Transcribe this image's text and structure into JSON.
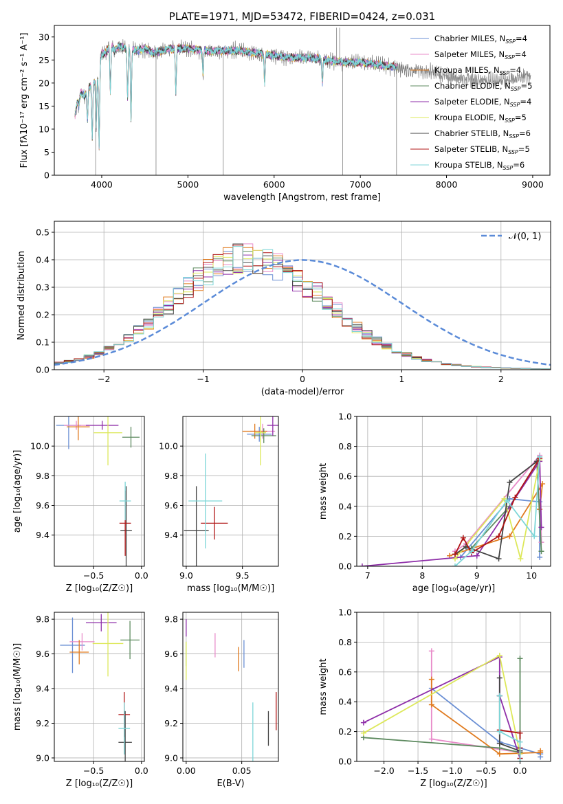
{
  "colors": {
    "Chabrier MILES": "#6a8fd4",
    "Salpeter MILES": "#e88bc9",
    "Kroupa MILES": "#e07b1f",
    "Chabrier ELODIE": "#5d8a5f",
    "Salpeter ELODIE": "#8e2ea8",
    "Kroupa ELODIE": "#dde85a",
    "Chabrier STELIB": "#444444",
    "Salpeter STELIB": "#b01515",
    "Kroupa STELIB": "#7dd6d8"
  },
  "chart_data": [
    {
      "id": "spectrum",
      "type": "line",
      "title": "PLATE=1971, MJD=53472, FIBERID=0424, z=0.031",
      "xlabel": "wavelength [Angstrom, rest frame]",
      "ylabel": "Flux [fλ10⁻¹⁷ erg cm⁻² s⁻¹ A⁻¹]",
      "xlim": [
        3450,
        9200
      ],
      "ylim": [
        0,
        32.5
      ],
      "xticks": [
        4000,
        5000,
        6000,
        7000,
        8000,
        9000
      ],
      "yticks": [
        0,
        5,
        10,
        15,
        20,
        25,
        30
      ],
      "legend_position": "top-right",
      "legend": [
        {
          "name": "Chabrier MILES",
          "nssp": "4"
        },
        {
          "name": "Salpeter MILES",
          "nssp": "4"
        },
        {
          "name": "Kroupa MILES",
          "nssp": "4"
        },
        {
          "name": "Chabrier ELODIE",
          "nssp": "5"
        },
        {
          "name": "Salpeter ELODIE",
          "nssp": "4"
        },
        {
          "name": "Kroupa ELODIE",
          "nssp": "5"
        },
        {
          "name": "Chabrier STELIB",
          "nssp": "6"
        },
        {
          "name": "Salpeter STELIB",
          "nssp": "5"
        },
        {
          "name": "Kroupa STELIB",
          "nssp": "6"
        }
      ],
      "data_profile": {
        "x": [
          3690,
          3720,
          3760,
          3800,
          3850,
          3900,
          3950,
          4000,
          4050,
          4100,
          4150,
          4200,
          4300,
          4400,
          4500,
          4600,
          4800,
          5000,
          5200,
          5400,
          5600,
          5800,
          6000,
          6200,
          6400,
          6600,
          6800,
          7000,
          7200,
          7400,
          7500,
          7800,
          8000,
          8200,
          8500,
          8800,
          8900
        ],
        "y": [
          13,
          16,
          18,
          17,
          19,
          20,
          21,
          26.5,
          26.5,
          28.5,
          27,
          28,
          27.5,
          27,
          27.5,
          26.5,
          27.5,
          27.5,
          27,
          27,
          27,
          26.5,
          26,
          25.5,
          25.5,
          25,
          24.5,
          24.5,
          24,
          23.5,
          23,
          22.5,
          21.5,
          21,
          20.5,
          21,
          21.5
        ]
      },
      "model_xrange": [
        3690,
        7430
      ],
      "data_xrange": [
        3690,
        8980
      ],
      "absorption_dips": [
        {
          "x": 3735,
          "y": 15
        },
        {
          "x": 3835,
          "y": 12
        },
        {
          "x": 3890,
          "y": 8
        },
        {
          "x": 3935,
          "y": 10
        },
        {
          "x": 3970,
          "y": 6
        },
        {
          "x": 4100,
          "y": 18
        },
        {
          "x": 4300,
          "y": 17
        },
        {
          "x": 4340,
          "y": 12
        },
        {
          "x": 4860,
          "y": 18
        },
        {
          "x": 5175,
          "y": 22
        },
        {
          "x": 5890,
          "y": 20
        },
        {
          "x": 6560,
          "y": 20
        }
      ],
      "spikes": [
        {
          "x": 3930,
          "y": 0
        },
        {
          "x": 4630,
          "y": 0
        },
        {
          "x": 5410,
          "y": 0
        },
        {
          "x": 6795,
          "y": 0
        },
        {
          "x": 6725,
          "y": 32
        },
        {
          "x": 6760,
          "y": 32
        },
        {
          "x": 7420,
          "y": 0
        }
      ]
    },
    {
      "id": "residuals",
      "type": "histogram",
      "xlabel": "(data-model)/error",
      "ylabel": "Normed distribution",
      "xlim": [
        -2.5,
        2.5
      ],
      "ylim": [
        0,
        0.54
      ],
      "xticks": [
        -2,
        -1,
        0,
        1,
        2
      ],
      "yticks": [
        0.0,
        0.1,
        0.2,
        0.3,
        0.4,
        0.5
      ],
      "grid": true,
      "bin_width": 0.1,
      "bin_start": -2.5,
      "legend_position": "top-right",
      "legend": [
        {
          "name": "𝒩(0, 1)",
          "style": "dashed",
          "color": "#5b8bd8"
        }
      ],
      "series_envelope": [
        0.024,
        0.026,
        0.03,
        0.033,
        0.037,
        0.042,
        0.048,
        0.054,
        0.061,
        0.068,
        0.077,
        0.086,
        0.096,
        0.107,
        0.118,
        0.13,
        0.143,
        0.157,
        0.171,
        0.186,
        0.201,
        0.217,
        0.233,
        0.248,
        0.264,
        0.28,
        0.296,
        0.311,
        0.326,
        0.34,
        0.353,
        0.365,
        0.376,
        0.385,
        0.393,
        0.399,
        0.403,
        0.406,
        0.407,
        0.405,
        0.402,
        0.397,
        0.391,
        0.383,
        0.374,
        0.363,
        0.351,
        0.338,
        0.324,
        0.309,
        0.294,
        0.278,
        0.262,
        0.246,
        0.23,
        0.214,
        0.198,
        0.183,
        0.169,
        0.155,
        0.141,
        0.128,
        0.116,
        0.105,
        0.095,
        0.085,
        0.076,
        0.068,
        0.061,
        0.055,
        0.049,
        0.043,
        0.038,
        0.034,
        0.03,
        0.027,
        0.024,
        0.021,
        0.019,
        0.017,
        0.015,
        0.013,
        0.012,
        0.011,
        0.01,
        0.009,
        0.008,
        0.007,
        0.006,
        0.006,
        0.005,
        0.005,
        0.004,
        0.004,
        0.003,
        0.003,
        0.003,
        0.003,
        0.002,
        0.002
      ]
    },
    {
      "id": "age_vs_Z",
      "type": "scatter",
      "xlabel": "Z [log₁₀(Z/Z☉)]",
      "ylabel": "age  [log₁₀(age/yr)]",
      "xlim": [
        -0.91,
        0.03
      ],
      "ylim": [
        9.19,
        10.2
      ],
      "xticks": [
        -0.5,
        0.0
      ],
      "yticks": [
        9.4,
        9.6,
        9.8,
        10.0
      ],
      "points": [
        {
          "model": "Chabrier MILES",
          "x": -0.76,
          "y": 10.14,
          "xerr": 0.13,
          "yerr": 0.16
        },
        {
          "model": "Salpeter MILES",
          "x": -0.68,
          "y": 10.14,
          "xerr": 0.13,
          "yerr": 0.03
        },
        {
          "model": "Kroupa MILES",
          "x": -0.66,
          "y": 10.13,
          "xerr": 0.12,
          "yerr": 0.09
        },
        {
          "model": "Chabrier ELODIE",
          "x": -0.11,
          "y": 10.06,
          "xerr": 0.09,
          "yerr": 0.07
        },
        {
          "model": "Salpeter ELODIE",
          "x": -0.41,
          "y": 10.14,
          "xerr": 0.17,
          "yerr": 0.03
        },
        {
          "model": "Kroupa ELODIE",
          "x": -0.35,
          "y": 10.09,
          "xerr": 0.15,
          "yerr": 0.22
        },
        {
          "model": "Chabrier STELIB",
          "x": -0.16,
          "y": 9.43,
          "xerr": 0.06,
          "yerr": 0.3
        },
        {
          "model": "Salpeter STELIB",
          "x": -0.17,
          "y": 9.48,
          "xerr": 0.06,
          "yerr": 0.22
        },
        {
          "model": "Kroupa STELIB",
          "x": -0.17,
          "y": 9.63,
          "xerr": 0.06,
          "yerr": 0.13
        }
      ]
    },
    {
      "id": "age_vs_mass",
      "type": "scatter",
      "xlabel": "mass [log₁₀(M/M☉)]",
      "ylabel": "",
      "xlim": [
        8.97,
        9.82
      ],
      "ylim": [
        9.19,
        10.2
      ],
      "xticks": [
        9.0,
        9.5
      ],
      "yticks": [
        9.4,
        9.6,
        9.8,
        10.0
      ],
      "points": [
        {
          "model": "Chabrier MILES",
          "x": 9.65,
          "y": 10.08,
          "xerr": 0.11,
          "yerr": 0.05
        },
        {
          "model": "Salpeter MILES",
          "x": 9.68,
          "y": 10.1,
          "xerr": 0.11,
          "yerr": 0.05
        },
        {
          "model": "Kroupa MILES",
          "x": 9.61,
          "y": 10.1,
          "xerr": 0.11,
          "yerr": 0.05
        },
        {
          "model": "Chabrier ELODIE",
          "x": 9.69,
          "y": 10.07,
          "xerr": 0.11,
          "yerr": 0.05
        },
        {
          "model": "Salpeter ELODIE",
          "x": 9.77,
          "y": 10.14,
          "xerr": 0.05,
          "yerr": 0.07
        },
        {
          "model": "Kroupa ELODIE",
          "x": 9.66,
          "y": 10.09,
          "xerr": 0.05,
          "yerr": 0.22
        },
        {
          "model": "Chabrier STELIB",
          "x": 9.09,
          "y": 9.43,
          "xerr": 0.11,
          "yerr": 0.3
        },
        {
          "model": "Salpeter STELIB",
          "x": 9.25,
          "y": 9.48,
          "xerr": 0.12,
          "yerr": 0.11
        },
        {
          "model": "Kroupa STELIB",
          "x": 9.17,
          "y": 9.63,
          "xerr": 0.15,
          "yerr": 0.32
        }
      ]
    },
    {
      "id": "mass_weight_vs_age",
      "type": "line",
      "xlabel": "age  [log₁₀(age/yr)]",
      "ylabel": "mass weight",
      "xlim": [
        6.8,
        10.35
      ],
      "ylim": [
        0.0,
        1.0
      ],
      "xticks": [
        7,
        8,
        9,
        10
      ],
      "yticks": [
        0.0,
        0.2,
        0.4,
        0.6,
        0.8,
        1.0
      ],
      "series": [
        {
          "name": "Chabrier MILES",
          "x": [
            8.7,
            9.6,
            10.15,
            10.15
          ],
          "y": [
            0.06,
            0.45,
            0.43,
            0.06
          ]
        },
        {
          "name": "Salpeter MILES",
          "x": [
            8.6,
            8.8,
            10.15,
            10.18
          ],
          "y": [
            0.1,
            0.15,
            0.74,
            0.16
          ]
        },
        {
          "name": "Kroupa MILES",
          "x": [
            8.5,
            9.6,
            10.2,
            10.15
          ],
          "y": [
            0.07,
            0.2,
            0.55,
            0.38
          ]
        },
        {
          "name": "Chabrier ELODIE",
          "x": [
            8.9,
            9.6,
            10.1,
            10.18
          ],
          "y": [
            0.12,
            0.4,
            0.69,
            0.1
          ]
        },
        {
          "name": "Salpeter ELODIE",
          "x": [
            6.9,
            9.0,
            10.15,
            10.18
          ],
          "y": [
            0.0,
            0.07,
            0.7,
            0.26
          ]
        },
        {
          "name": "Kroupa ELODIE",
          "x": [
            8.6,
            9.5,
            9.8,
            10.15
          ],
          "y": [
            0.05,
            0.45,
            0.05,
            0.71
          ]
        },
        {
          "name": "Chabrier STELIB",
          "x": [
            8.6,
            8.8,
            9.4,
            9.6,
            10.1
          ],
          "y": [
            0.08,
            0.13,
            0.05,
            0.56,
            0.7
          ]
        },
        {
          "name": "Salpeter STELIB",
          "x": [
            8.6,
            8.75,
            8.9,
            9.4,
            9.7,
            10.15
          ],
          "y": [
            0.08,
            0.19,
            0.09,
            0.2,
            0.46,
            0.72
          ]
        },
        {
          "name": "Kroupa STELIB",
          "x": [
            8.6,
            8.9,
            9.55,
            10.05,
            10.15
          ],
          "y": [
            0.0,
            0.1,
            0.44,
            0.2,
            0.73
          ]
        }
      ]
    },
    {
      "id": "mass_vs_Z",
      "type": "scatter",
      "xlabel": "Z [log₁₀(Z/Z☉)]",
      "ylabel": "mass [log₁₀(M/M☉)]",
      "xlim": [
        -0.91,
        0.03
      ],
      "ylim": [
        8.98,
        9.84
      ],
      "xticks": [
        -0.5,
        0.0
      ],
      "yticks": [
        9.0,
        9.2,
        9.4,
        9.6,
        9.8
      ],
      "points": [
        {
          "model": "Chabrier MILES",
          "x": -0.72,
          "y": 9.65,
          "xerr": 0.13,
          "yerr": 0.16
        },
        {
          "model": "Salpeter MILES",
          "x": -0.62,
          "y": 9.67,
          "xerr": 0.13,
          "yerr": 0.05
        },
        {
          "model": "Kroupa MILES",
          "x": -0.65,
          "y": 9.61,
          "xerr": 0.1,
          "yerr": 0.07
        },
        {
          "model": "Chabrier ELODIE",
          "x": -0.12,
          "y": 9.68,
          "xerr": 0.1,
          "yerr": 0.11
        },
        {
          "model": "Salpeter ELODIE",
          "x": -0.42,
          "y": 9.78,
          "xerr": 0.16,
          "yerr": 0.05
        },
        {
          "model": "Kroupa ELODIE",
          "x": -0.35,
          "y": 9.66,
          "xerr": 0.16,
          "yerr": 0.19
        },
        {
          "model": "Chabrier STELIB",
          "x": -0.17,
          "y": 9.09,
          "xerr": 0.07,
          "yerr": 0.18
        },
        {
          "model": "Salpeter STELIB",
          "x": -0.18,
          "y": 9.25,
          "xerr": 0.06,
          "yerr": 0.13
        },
        {
          "model": "Kroupa STELIB",
          "x": -0.18,
          "y": 9.17,
          "xerr": 0.06,
          "yerr": 0.15
        }
      ]
    },
    {
      "id": "mass_vs_EBV",
      "type": "scatter",
      "xlabel": "E(B-V)",
      "ylabel": "",
      "xlim": [
        -0.003,
        0.083
      ],
      "ylim": [
        8.98,
        9.84
      ],
      "xticks": [
        0.0,
        0.05
      ],
      "yticks": [
        9.0,
        9.2,
        9.4,
        9.6,
        9.8
      ],
      "points": [
        {
          "model": "Chabrier MILES",
          "x": 0.052,
          "y": 9.6,
          "xerr": 0.0,
          "yerr": 0.08
        },
        {
          "model": "Salpeter MILES",
          "x": 0.026,
          "y": 9.65,
          "xerr": 0.0,
          "yerr": 0.07
        },
        {
          "model": "Kroupa MILES",
          "x": 0.047,
          "y": 9.57,
          "xerr": 0.0,
          "yerr": 0.07
        },
        {
          "model": "Chabrier ELODIE",
          "x": 0.0,
          "y": 9.6,
          "xerr": 0.0,
          "yerr": 0.07
        },
        {
          "model": "Salpeter ELODIE",
          "x": 0.0,
          "y": 9.75,
          "xerr": 0.0,
          "yerr": 0.05
        },
        {
          "model": "Kroupa ELODIE",
          "x": 0.0,
          "y": 9.56,
          "xerr": 0.0,
          "yerr": 0.11
        },
        {
          "model": "Chabrier STELIB",
          "x": 0.074,
          "y": 9.17,
          "xerr": 0.0,
          "yerr": 0.1
        },
        {
          "model": "Salpeter STELIB",
          "x": 0.081,
          "y": 9.27,
          "xerr": 0.0,
          "yerr": 0.11
        },
        {
          "model": "Kroupa STELIB",
          "x": 0.06,
          "y": 9.13,
          "xerr": 0.0,
          "yerr": 0.19
        }
      ]
    },
    {
      "id": "mass_weight_vs_Z",
      "type": "line",
      "xlabel": "Z [log₁₀(Z/Z☉)]",
      "ylabel": "mass weight",
      "xlim": [
        -2.4,
        0.45
      ],
      "ylim": [
        0.0,
        1.0
      ],
      "xticks": [
        -2.0,
        -1.5,
        -1.0,
        -0.5,
        0.0
      ],
      "yticks": [
        0.0,
        0.2,
        0.4,
        0.6,
        0.8,
        1.0
      ],
      "series": [
        {
          "name": "Chabrier MILES",
          "x": [
            -1.3,
            -0.3,
            0.0,
            0.3,
            0.3
          ],
          "y": [
            0.49,
            0.13,
            0.09,
            0.05,
            0.03
          ]
        },
        {
          "name": "Salpeter MILES",
          "x": [
            -1.3,
            -1.3,
            0.0,
            0.0
          ],
          "y": [
            0.74,
            0.15,
            0.06,
            0.05
          ]
        },
        {
          "name": "Kroupa MILES",
          "x": [
            -1.3,
            -1.3,
            -0.3,
            0.3,
            0.3
          ],
          "y": [
            0.55,
            0.38,
            0.05,
            0.06,
            0.07
          ]
        },
        {
          "name": "Chabrier ELODIE",
          "x": [
            -2.3,
            -0.3,
            0.0,
            0.0
          ],
          "y": [
            0.16,
            0.09,
            0.06,
            0.69
          ]
        },
        {
          "name": "Salpeter ELODIE",
          "x": [
            -2.3,
            -0.3,
            -0.3,
            0.0
          ],
          "y": [
            0.26,
            0.7,
            0.44,
            0.02
          ]
        },
        {
          "name": "Kroupa ELODIE",
          "x": [
            -2.3,
            -0.3,
            0.0
          ],
          "y": [
            0.19,
            0.71,
            0.05
          ]
        },
        {
          "name": "Chabrier STELIB",
          "x": [
            -0.3,
            -0.3,
            -0.3,
            0.0,
            0.0
          ],
          "y": [
            0.56,
            0.44,
            0.12,
            0.07,
            0.13
          ]
        },
        {
          "name": "Salpeter STELIB",
          "x": [
            -0.3,
            0.0,
            0.0,
            0.0
          ],
          "y": [
            0.21,
            0.19,
            0.02,
            0.09
          ]
        },
        {
          "name": "Kroupa STELIB",
          "x": [
            -0.3,
            -0.3,
            0.0,
            0.0
          ],
          "y": [
            0.44,
            0.2,
            0.13,
            0.0
          ]
        }
      ]
    }
  ]
}
